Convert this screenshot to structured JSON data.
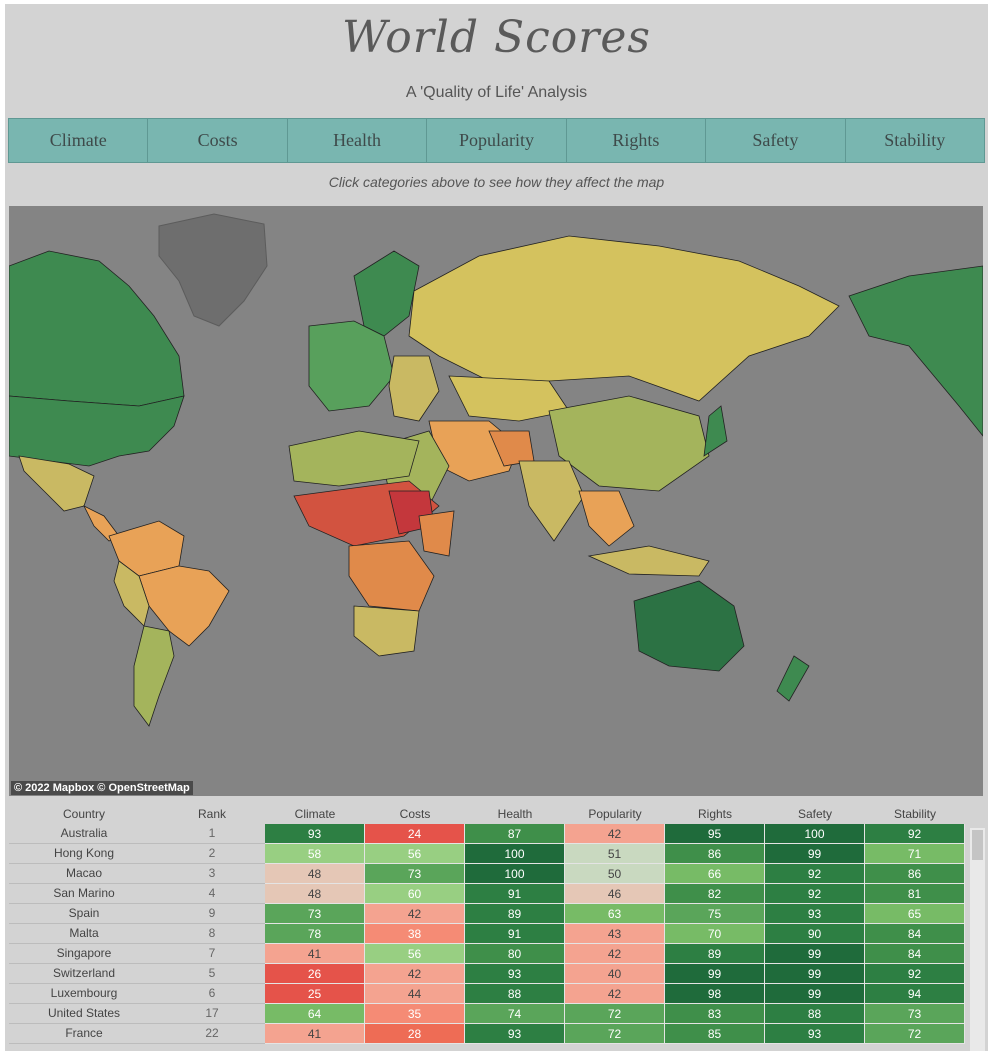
{
  "header": {
    "title": "World Scores",
    "subtitle": "A 'Quality of Life' Analysis",
    "hint": "Click categories above to see how they affect the map"
  },
  "categories": [
    "Climate",
    "Costs",
    "Health",
    "Popularity",
    "Rights",
    "Safety",
    "Stability"
  ],
  "map": {
    "attribution": "© 2022 Mapbox  © OpenStreetMap",
    "ocean_color": "#848484",
    "land_color": "#6e6e6e"
  },
  "table": {
    "headers": [
      "Country",
      "Rank",
      "Climate",
      "Costs",
      "Health",
      "Popularity",
      "Rights",
      "Safety",
      "Stability"
    ],
    "rows": [
      {
        "country": "Australia",
        "rank": "1",
        "values": [
          "93",
          "24",
          "87",
          "42",
          "95",
          "100",
          "92"
        ]
      },
      {
        "country": "Hong Kong",
        "rank": "2",
        "values": [
          "58",
          "56",
          "100",
          "51",
          "86",
          "99",
          "71"
        ]
      },
      {
        "country": "Macao",
        "rank": "3",
        "values": [
          "48",
          "73",
          "100",
          "50",
          "66",
          "92",
          "86"
        ]
      },
      {
        "country": "San Marino",
        "rank": "4",
        "values": [
          "48",
          "60",
          "91",
          "46",
          "82",
          "92",
          "81"
        ]
      },
      {
        "country": "Spain",
        "rank": "9",
        "values": [
          "73",
          "42",
          "89",
          "63",
          "75",
          "93",
          "65"
        ]
      },
      {
        "country": "Malta",
        "rank": "8",
        "values": [
          "78",
          "38",
          "91",
          "43",
          "70",
          "90",
          "84"
        ]
      },
      {
        "country": "Singapore",
        "rank": "7",
        "values": [
          "41",
          "56",
          "80",
          "42",
          "89",
          "99",
          "84"
        ]
      },
      {
        "country": "Switzerland",
        "rank": "5",
        "values": [
          "26",
          "42",
          "93",
          "40",
          "99",
          "99",
          "92"
        ]
      },
      {
        "country": "Luxembourg",
        "rank": "6",
        "values": [
          "25",
          "44",
          "88",
          "42",
          "98",
          "99",
          "94"
        ]
      },
      {
        "country": "United States",
        "rank": "17",
        "values": [
          "64",
          "35",
          "74",
          "72",
          "83",
          "88",
          "73"
        ]
      },
      {
        "country": "France",
        "rank": "22",
        "values": [
          "41",
          "28",
          "93",
          "72",
          "85",
          "93",
          "72"
        ]
      }
    ]
  }
}
